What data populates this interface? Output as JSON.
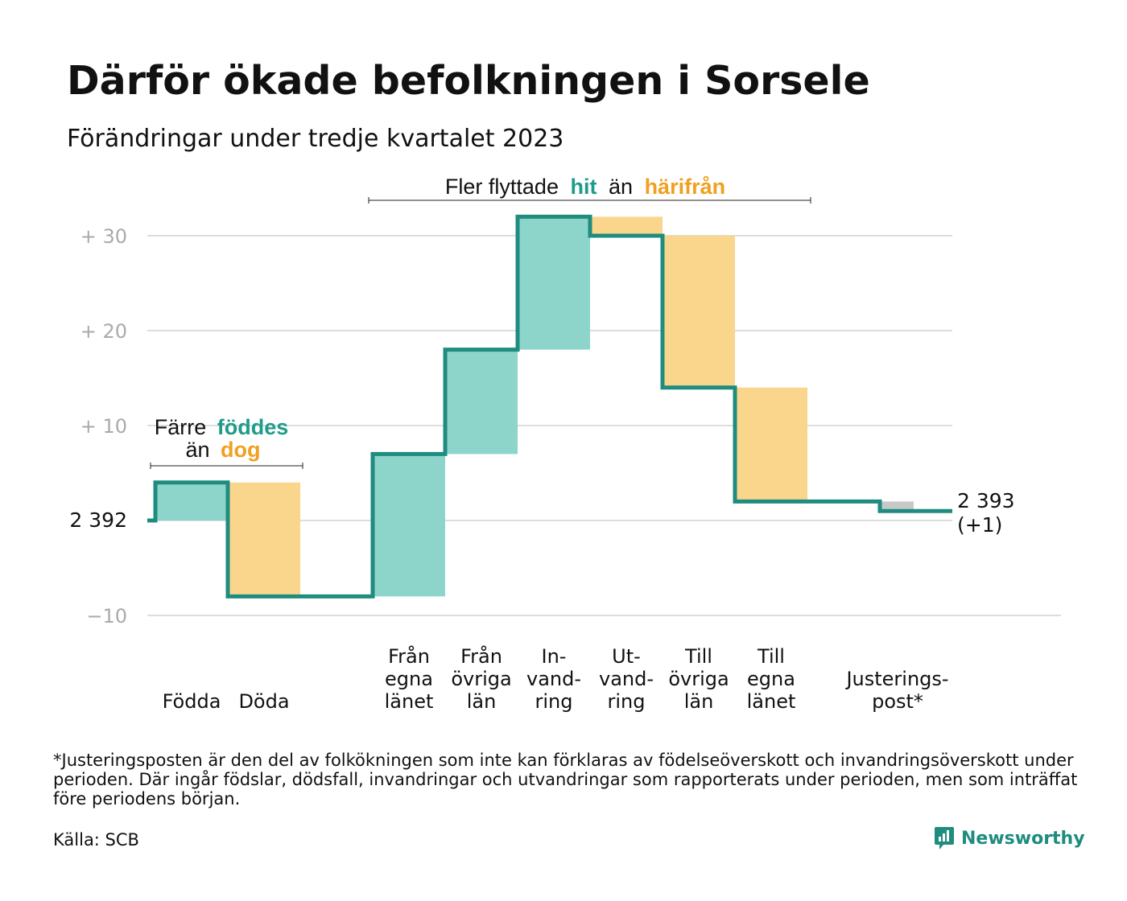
{
  "header": {
    "title": "Därför ökade befolkningen i Sorsele",
    "subtitle": "Förändringar under tredje kvartalet 2023"
  },
  "annotations": {
    "birth_line1_prefix": "Färre",
    "birth_line1_highlight": "föddes",
    "birth_line2_prefix": "än",
    "birth_line2_highlight": "dog",
    "move_prefix": "Fler flyttade",
    "move_highlight1": "hit",
    "move_middle": "än",
    "move_highlight2": "härifrån"
  },
  "chart_data": {
    "type": "waterfall",
    "base_label": "2  392",
    "end_value_label": "2 393",
    "end_change_label": "(+1)",
    "yticks": [
      {
        "value": 30,
        "label": "+  30"
      },
      {
        "value": 20,
        "label": "+  20"
      },
      {
        "value": 10,
        "label": "+  10"
      },
      {
        "value": 0,
        "label": ""
      },
      {
        "value": -10,
        "label": "−10"
      }
    ],
    "ylim": [
      -10,
      32
    ],
    "steps": [
      {
        "category": "Födda",
        "label_lines": [
          "Födda"
        ],
        "change": 4,
        "kind": "in"
      },
      {
        "category": "Döda",
        "label_lines": [
          "Döda"
        ],
        "change": -12,
        "kind": "out"
      },
      {
        "category": "",
        "label_lines": [],
        "change": 0,
        "kind": "gap"
      },
      {
        "category": "Från egna länet",
        "label_lines": [
          "Från",
          "egna",
          "länet"
        ],
        "change": 15,
        "kind": "in"
      },
      {
        "category": "Från övriga län",
        "label_lines": [
          "Från",
          "övriga",
          "län"
        ],
        "change": 11,
        "kind": "in"
      },
      {
        "category": "In-vand-ring",
        "label_lines": [
          "In-",
          "vand-",
          "ring"
        ],
        "change": 14,
        "kind": "in"
      },
      {
        "category": "Ut-vand-ring",
        "label_lines": [
          "Ut-",
          "vand-",
          "ring"
        ],
        "change": -2,
        "kind": "out"
      },
      {
        "category": "Till övriga län",
        "label_lines": [
          "Till",
          "övriga",
          "län"
        ],
        "change": -16,
        "kind": "out"
      },
      {
        "category": "Till egna länet",
        "label_lines": [
          "Till",
          "egna",
          "länet"
        ],
        "change": -12,
        "kind": "out"
      },
      {
        "category": "",
        "label_lines": [],
        "change": 0,
        "kind": "gap"
      },
      {
        "category": "Justerings-post*",
        "label_lines": [
          "Justerings-",
          "post*"
        ],
        "change": -1,
        "kind": "adj"
      }
    ],
    "colors": {
      "line": "#1e8c7e",
      "in_fill": "#8dd5cb",
      "out_fill": "#fad68d",
      "adj_fill": "#c8c8c8",
      "grid": "#dddddd",
      "tick_text": "#aaaaaa",
      "highlight_green": "#1e9c8a",
      "highlight_orange": "#f0a020"
    }
  },
  "footer": {
    "footnote": "*Justeringsposten är den del av folkökningen som inte kan förklaras av födelseöverskott och invandringsöverskott under perioden. Där ingår födslar, dödsfall, invandringar och utvandringar som rapporterats under perioden, men som inträffat före periodens början.",
    "source": "Källa: SCB",
    "brand": "Newsworthy"
  }
}
